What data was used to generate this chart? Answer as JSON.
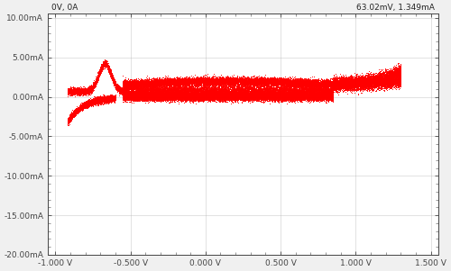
{
  "title_left": "0V, 0A",
  "title_right": "63.02mV, 1.349mA",
  "xlim": [
    -1.05,
    1.55
  ],
  "ylim": [
    -0.02,
    0.0105
  ],
  "xticks": [
    -1.0,
    -0.5,
    0.0,
    0.5,
    1.0,
    1.5
  ],
  "yticks": [
    -0.02,
    -0.015,
    -0.01,
    -0.005,
    0.0,
    0.005,
    0.01
  ],
  "xlabel_vals": [
    "-1.000 V",
    "-0.500 V",
    "0.000 V",
    "0.500 V",
    "1.000 V",
    "1.500 V"
  ],
  "ylabel_vals": [
    "-20.00mA",
    "-15.00mA",
    "-10.00mA",
    "-5.00mA",
    "0.00mA",
    "5.00mA",
    "10.00mA"
  ],
  "data_color": "#FF0000",
  "bg_color": "#f0f0f0",
  "plot_bg_color": "#ffffff",
  "grid_color": "#aaaaaa",
  "text_color": "#222222",
  "tick_color": "#444444",
  "dot_size": 0.5,
  "noise_std": 0.00025
}
